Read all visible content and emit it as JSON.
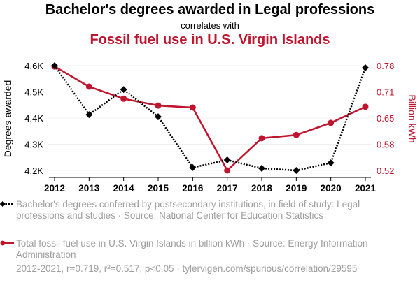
{
  "title": "Bachelor's degrees awarded in Legal professions",
  "subtitle": "correlates with",
  "title2": "Fossil fuel use in U.S. Virgin Islands",
  "colors": {
    "series1": "#000000",
    "series2": "#c0152f",
    "legend_text": "#9e9e9e"
  },
  "chart_data": {
    "type": "line",
    "x": [
      2012,
      2013,
      2014,
      2015,
      2016,
      2017,
      2018,
      2019,
      2020,
      2021
    ],
    "x_tick_labels": [
      "2012",
      "2013",
      "2014",
      "2015",
      "2016",
      "2017",
      "2018",
      "2019",
      "2020",
      "2021"
    ],
    "ylabel_left": "Degrees awarded",
    "ylabel_right": "Billion kWh",
    "ylim_left": [
      4200,
      4600
    ],
    "ylim_right": [
      0.52,
      0.78
    ],
    "left_ticks": [
      {
        "v": 4200,
        "label": "4.2K"
      },
      {
        "v": 4300,
        "label": "4.3K"
      },
      {
        "v": 4400,
        "label": "4.4K"
      },
      {
        "v": 4500,
        "label": "4.5K"
      },
      {
        "v": 4600,
        "label": "4.6K"
      }
    ],
    "right_ticks": [
      {
        "v": 0.52,
        "label": "0.52"
      },
      {
        "v": 0.585,
        "label": "0.58"
      },
      {
        "v": 0.65,
        "label": "0.65"
      },
      {
        "v": 0.715,
        "label": "0.71"
      },
      {
        "v": 0.78,
        "label": "0.78"
      }
    ],
    "grid": true,
    "series": [
      {
        "name": "Bachelor's degrees conferred by postsecondary institutions, in field of study: Legal professions and studies · Source: National Center for Education Statistics",
        "axis": "left",
        "style": "dotted",
        "marker": "diamond",
        "values": [
          4600,
          4413,
          4509,
          4405,
          4211,
          4240,
          4208,
          4200,
          4229,
          4592
        ]
      },
      {
        "name": "Total fossil fuel use in U.S. Virgin Islands in billion kWh · Source: Energy Information Administration",
        "axis": "right",
        "style": "solid",
        "marker": "circle",
        "values": [
          0.778,
          0.728,
          0.698,
          0.681,
          0.676,
          0.52,
          0.6,
          0.608,
          0.638,
          0.678
        ]
      }
    ]
  },
  "footer": "2012-2021, r=0.719, r²=0.517, p<0.05 · tylervigen.com/spurious/correlation/29595"
}
